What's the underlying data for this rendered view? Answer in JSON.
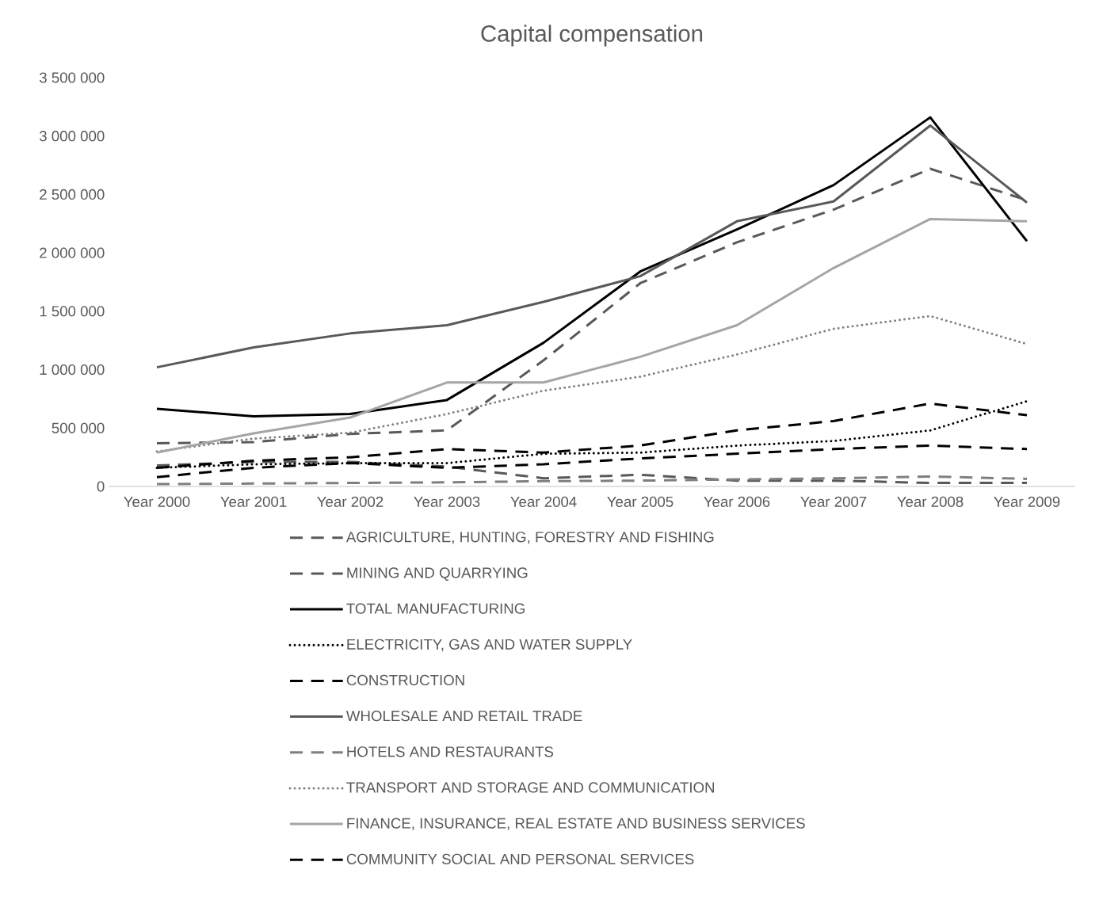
{
  "chart_data": {
    "type": "line",
    "title": "Capital compensation",
    "categories": [
      "Year 2000",
      "Year 2001",
      "Year 2002",
      "Year 2003",
      "Year 2004",
      "Year 2005",
      "Year 2006",
      "Year 2007",
      "Year 2008",
      "Year 2009"
    ],
    "series": [
      {
        "name": "AGRICULTURE, HUNTING, FORESTRY AND FISHING",
        "color": "#595959",
        "line_style": "dashed",
        "values": [
          180000,
          210000,
          210000,
          170000,
          70000,
          100000,
          50000,
          50000,
          30000,
          30000
        ]
      },
      {
        "name": "MINING AND QUARRYING",
        "color": "#595959",
        "line_style": "dashed",
        "values": [
          370000,
          380000,
          450000,
          480000,
          1080000,
          1740000,
          2090000,
          2370000,
          2720000,
          2450000
        ]
      },
      {
        "name": "TOTAL MANUFACTURING",
        "color": "#000000",
        "line_style": "solid",
        "values": [
          665000,
          600000,
          620000,
          740000,
          1230000,
          1840000,
          2200000,
          2580000,
          3160000,
          2100000
        ]
      },
      {
        "name": "ELECTRICITY, GAS AND WATER SUPPLY",
        "color": "#000000",
        "line_style": "dotted",
        "values": [
          160000,
          190000,
          200000,
          200000,
          280000,
          290000,
          350000,
          390000,
          480000,
          730000
        ]
      },
      {
        "name": "CONSTRUCTION",
        "color": "#000000",
        "line_style": "dashed",
        "values": [
          160000,
          220000,
          250000,
          320000,
          290000,
          350000,
          480000,
          560000,
          710000,
          610000
        ]
      },
      {
        "name": "WHOLESALE AND RETAIL TRADE",
        "color": "#595959",
        "line_style": "solid",
        "values": [
          1020000,
          1190000,
          1310000,
          1380000,
          1580000,
          1800000,
          2270000,
          2440000,
          3090000,
          2430000
        ]
      },
      {
        "name": "HOTELS AND RESTAURANTS",
        "color": "#7f7f7f",
        "line_style": "dashed",
        "values": [
          20000,
          25000,
          30000,
          35000,
          45000,
          50000,
          60000,
          70000,
          85000,
          65000
        ]
      },
      {
        "name": "TRANSPORT AND STORAGE AND COMMUNICATION",
        "color": "#7f7f7f",
        "line_style": "dotted",
        "values": [
          300000,
          410000,
          460000,
          620000,
          820000,
          940000,
          1130000,
          1350000,
          1460000,
          1220000
        ]
      },
      {
        "name": "FINANCE, INSURANCE, REAL ESTATE AND BUSINESS SERVICES",
        "color": "#a5a5a5",
        "line_style": "solid",
        "values": [
          290000,
          455000,
          590000,
          890000,
          890000,
          1110000,
          1380000,
          1870000,
          2290000,
          2270000
        ]
      },
      {
        "name": "COMMUNITY SOCIAL AND PERSONAL SERVICES",
        "color": "#000000",
        "line_style": "dashed",
        "values": [
          80000,
          160000,
          200000,
          160000,
          190000,
          240000,
          280000,
          320000,
          350000,
          320000
        ]
      }
    ],
    "ylim": [
      0,
      3500000
    ],
    "yticks": [
      {
        "value": 0,
        "label": "0"
      },
      {
        "value": 500000,
        "label": "500 000"
      },
      {
        "value": 1000000,
        "label": "1 000 000"
      },
      {
        "value": 1500000,
        "label": "1 500 000"
      },
      {
        "value": 2000000,
        "label": "2 000 000"
      },
      {
        "value": 2500000,
        "label": "2 500 000"
      },
      {
        "value": 3000000,
        "label": "3 000 000"
      },
      {
        "value": 3500000,
        "label": "3 500 000"
      }
    ],
    "grid": false,
    "legend": "bottom",
    "marker": "none"
  }
}
